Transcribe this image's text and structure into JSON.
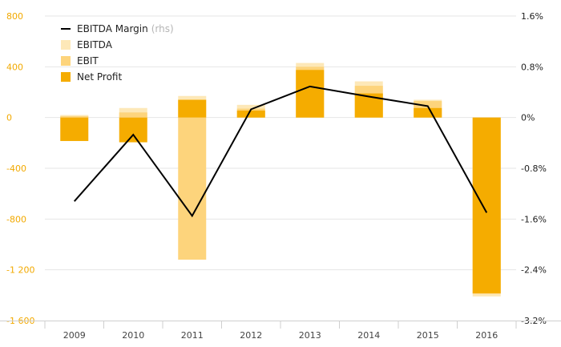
{
  "chart_data": {
    "type": "bar",
    "categories": [
      "2009",
      "2010",
      "2011",
      "2012",
      "2013",
      "2014",
      "2015",
      "2016"
    ],
    "series": [
      {
        "name": "EBITDA",
        "kind": "bar",
        "axis": "left",
        "color": "#fde8b8",
        "values": [
          20,
          75,
          170,
          100,
          430,
          285,
          140,
          -1410
        ]
      },
      {
        "name": "EBIT",
        "kind": "bar",
        "axis": "left",
        "color": "#fdd47c",
        "values": [
          10,
          40,
          -1120,
          70,
          400,
          250,
          130,
          -1390
        ]
      },
      {
        "name": "Net Profit",
        "kind": "bar",
        "axis": "left",
        "color": "#f5ac00",
        "values": [
          -185,
          -195,
          140,
          55,
          375,
          190,
          75,
          -1385
        ]
      },
      {
        "name": "EBITDA Margin",
        "kind": "line",
        "axis": "right",
        "color": "#000000",
        "values": [
          -1.32,
          -0.27,
          -1.55,
          0.13,
          0.49,
          0.33,
          0.18,
          -1.5
        ]
      }
    ],
    "legend": [
      {
        "label": "EBITDA Margin",
        "note": "(rhs)",
        "marker": "line",
        "color": "#000000"
      },
      {
        "label": "EBITDA",
        "note": "",
        "marker": "square",
        "color": "#fde8b8"
      },
      {
        "label": "EBIT",
        "note": "",
        "marker": "square",
        "color": "#fdd47c"
      },
      {
        "label": "Net Profit",
        "note": "",
        "marker": "square",
        "color": "#f5ac00"
      }
    ],
    "left_ylim": [
      -1600,
      800
    ],
    "left_ticks": [
      800,
      400,
      0,
      -400,
      -800,
      -1200,
      -1600
    ],
    "left_tick_labels": [
      "800",
      "400",
      "0",
      "-400",
      "-800",
      "-1 200",
      "-1 600"
    ],
    "right_ylim": [
      -3.2,
      1.6
    ],
    "right_ticks": [
      1.6,
      0.8,
      0,
      -0.8,
      -1.6,
      -2.4,
      -3.2
    ],
    "right_tick_labels": [
      "1.6%",
      "0.8%",
      "0%",
      "-0.8%",
      "-1.6%",
      "-2.4%",
      "-3.2%"
    ],
    "legend_position": "top-left",
    "grid": true,
    "left_axis_color": "#f2a900"
  }
}
